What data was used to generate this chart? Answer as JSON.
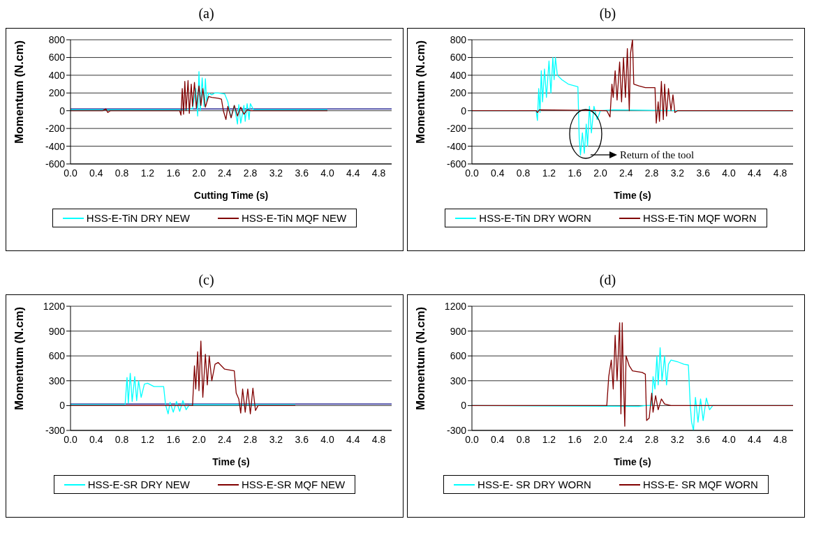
{
  "chart_data": [
    {
      "type": "line",
      "title": "(a)",
      "xlabel": "Cutting Time (s)",
      "ylabel": "Momentum (N.cm)",
      "xlim": [
        0,
        5
      ],
      "xticks": [
        {
          "value": 0,
          "label": "0.0"
        },
        0.4,
        0.8,
        1.2,
        1.6,
        {
          "value": 2,
          "label": "2.0"
        },
        2.4,
        2.8,
        3.2,
        3.6,
        {
          "value": 4,
          "label": "4.0"
        },
        4.4,
        4.8
      ],
      "ylim": [
        -600,
        800
      ],
      "yticks": [
        -600,
        -400,
        -200,
        0,
        200,
        400,
        600,
        800
      ],
      "grid": "y",
      "legend": "bottom",
      "marker": "none",
      "line_style": "solid",
      "series": [
        {
          "color": "#000080",
          "x": [
            0,
            5
          ],
          "values": [
            20,
            20
          ]
        },
        {
          "name": "HSS-E-TiN DRY NEW",
          "color": "#00ffff",
          "x": [
            0,
            1.7,
            1.75,
            1.9,
            1.95,
            1.98,
            2.0,
            2.02,
            2.05,
            2.08,
            2.1,
            2.12,
            2.15,
            2.2,
            2.25,
            2.3,
            2.4,
            2.45,
            2.5,
            2.55,
            2.6,
            2.62,
            2.65,
            2.7,
            2.72,
            2.75,
            2.78,
            2.8,
            2.85,
            3.2,
            4.0
          ],
          "values": [
            10,
            10,
            10,
            20,
            250,
            -60,
            440,
            0,
            370,
            50,
            360,
            100,
            200,
            180,
            200,
            200,
            190,
            100,
            -80,
            60,
            -150,
            70,
            -140,
            60,
            -120,
            80,
            -100,
            80,
            10,
            10,
            10
          ]
        },
        {
          "name": "HSS-E-TiN MQF NEW",
          "color": "#800000",
          "x": [
            0,
            0.5,
            0.55,
            0.58,
            0.62,
            1.7,
            1.72,
            1.74,
            1.76,
            1.78,
            1.8,
            1.83,
            1.85,
            1.88,
            1.9,
            1.93,
            1.96,
            2.0,
            2.03,
            2.06,
            2.1,
            2.15,
            2.2,
            2.3,
            2.35,
            2.38,
            2.42,
            2.45,
            2.5,
            2.55,
            2.6,
            2.65,
            2.7,
            2.75,
            2.8,
            4.0
          ],
          "values": [
            0,
            0,
            20,
            -20,
            0,
            0,
            -50,
            250,
            -40,
            330,
            0,
            340,
            -30,
            300,
            50,
            320,
            30,
            280,
            60,
            250,
            40,
            160,
            150,
            140,
            130,
            0,
            -100,
            50,
            -80,
            60,
            -60,
            40,
            -40,
            10,
            0,
            0
          ]
        }
      ]
    },
    {
      "type": "line",
      "title": "(b)",
      "xlabel": "Time (s)",
      "ylabel": "Momentum (N.cm)",
      "xlim": [
        0,
        5
      ],
      "xticks": [
        {
          "value": 0,
          "label": "0.0"
        },
        0.4,
        0.8,
        1.2,
        1.6,
        {
          "value": 2,
          "label": "2.0"
        },
        2.4,
        2.8,
        3.2,
        3.6,
        {
          "value": 4,
          "label": "4.0"
        },
        4.4,
        4.8
      ],
      "ylim": [
        -600,
        800
      ],
      "yticks": [
        -600,
        -400,
        -200,
        0,
        200,
        400,
        600,
        800
      ],
      "grid": "y",
      "legend": "bottom",
      "marker": "none",
      "line_style": "solid",
      "annotations": [
        "Return of the tool"
      ],
      "series": [
        {
          "name": "HSS-E-TiN DRY WORN",
          "color": "#00ffff",
          "x": [
            0,
            1.0,
            1.02,
            1.04,
            1.06,
            1.08,
            1.1,
            1.13,
            1.16,
            1.2,
            1.23,
            1.26,
            1.28,
            1.3,
            1.33,
            1.4,
            1.5,
            1.6,
            1.65,
            1.67,
            1.69,
            1.72,
            1.75,
            1.78,
            1.8,
            1.83,
            1.86,
            1.9,
            1.95,
            2.0,
            2.2,
            3.2,
            5.0
          ],
          "values": [
            0,
            0,
            -110,
            250,
            -20,
            450,
            100,
            470,
            150,
            560,
            200,
            600,
            350,
            600,
            400,
            350,
            300,
            280,
            270,
            -300,
            -500,
            -250,
            -480,
            -150,
            -400,
            50,
            -250,
            50,
            -100,
            0,
            10,
            0,
            0
          ]
        },
        {
          "name": "HSS-E-TiN MQF WORN",
          "color": "#800000",
          "x": [
            0,
            1.0,
            1.02,
            1.05,
            2.1,
            2.15,
            2.18,
            2.2,
            2.23,
            2.26,
            2.3,
            2.33,
            2.36,
            2.39,
            2.42,
            2.45,
            2.47,
            2.5,
            2.52,
            2.6,
            2.7,
            2.85,
            2.87,
            2.9,
            2.92,
            2.95,
            2.98,
            3.0,
            3.03,
            3.06,
            3.1,
            3.13,
            3.16,
            3.2,
            5.0
          ],
          "values": [
            0,
            0,
            -20,
            10,
            0,
            -70,
            300,
            150,
            450,
            120,
            550,
            100,
            600,
            150,
            700,
            0,
            650,
            800,
            300,
            280,
            260,
            260,
            -140,
            100,
            -120,
            330,
            -100,
            300,
            -60,
            250,
            0,
            180,
            -20,
            0,
            0
          ]
        }
      ]
    },
    {
      "type": "line",
      "title": "(c)",
      "xlabel": "Time (s)",
      "ylabel": "Momentum (N.cm)",
      "xlim": [
        0,
        5
      ],
      "xticks": [
        {
          "value": 0,
          "label": "0.0"
        },
        0.4,
        0.8,
        1.2,
        1.6,
        {
          "value": 2,
          "label": "2.0"
        },
        2.4,
        2.8,
        3.2,
        3.6,
        {
          "value": 4,
          "label": "4.0"
        },
        4.4,
        4.8
      ],
      "ylim": [
        -300,
        1200
      ],
      "yticks": [
        -300,
        0,
        300,
        600,
        900,
        1200
      ],
      "grid": "y",
      "legend": "bottom",
      "marker": "none",
      "line_style": "solid",
      "series": [
        {
          "color": "#000080",
          "x": [
            0,
            5
          ],
          "values": [
            20,
            20
          ]
        },
        {
          "name": "HSS-E-SR DRY NEW",
          "color": "#00ffff",
          "x": [
            0,
            0.85,
            0.88,
            0.9,
            0.93,
            0.96,
            1.0,
            1.03,
            1.06,
            1.1,
            1.15,
            1.2,
            1.3,
            1.45,
            1.48,
            1.52,
            1.55,
            1.6,
            1.65,
            1.7,
            1.75,
            1.8,
            1.85,
            2.6,
            3.5
          ],
          "values": [
            10,
            10,
            340,
            30,
            390,
            50,
            350,
            60,
            300,
            100,
            260,
            270,
            230,
            230,
            10,
            -100,
            40,
            -80,
            50,
            -70,
            60,
            -50,
            10,
            10,
            10
          ]
        },
        {
          "name": "HSS-E-SR MQF NEW",
          "color": "#800000",
          "x": [
            0,
            1.9,
            1.93,
            1.95,
            1.98,
            2.0,
            2.03,
            2.06,
            2.1,
            2.13,
            2.16,
            2.2,
            2.25,
            2.3,
            2.4,
            2.55,
            2.58,
            2.62,
            2.65,
            2.68,
            2.72,
            2.76,
            2.8,
            2.84,
            2.88,
            2.92,
            3.5
          ],
          "values": [
            0,
            0,
            480,
            200,
            650,
            180,
            780,
            100,
            620,
            250,
            600,
            300,
            500,
            520,
            440,
            420,
            150,
            80,
            -90,
            200,
            -80,
            200,
            -100,
            210,
            -60,
            0,
            0
          ]
        }
      ]
    },
    {
      "type": "line",
      "title": "(d)",
      "xlabel": "Time (s)",
      "ylabel": "Momentum (N.cm)",
      "xlim": [
        0,
        5
      ],
      "xticks": [
        {
          "value": 0,
          "label": "0.0"
        },
        0.4,
        0.8,
        1.2,
        1.6,
        {
          "value": 2,
          "label": "2.0"
        },
        2.4,
        2.8,
        3.2,
        3.6,
        {
          "value": 4,
          "label": "4.0"
        },
        4.4,
        4.8
      ],
      "ylim": [
        -300,
        1200
      ],
      "yticks": [
        -300,
        0,
        300,
        600,
        900,
        1200
      ],
      "grid": "y",
      "legend": "bottom",
      "marker": "none",
      "line_style": "solid",
      "series": [
        {
          "name": "HSS-E- SR DRY WORN",
          "color": "#00ffff",
          "x": [
            0,
            2.6,
            2.7,
            2.8,
            2.82,
            2.85,
            2.88,
            2.9,
            2.93,
            2.96,
            3.0,
            3.03,
            3.06,
            3.1,
            3.2,
            3.3,
            3.37,
            3.4,
            3.42,
            3.45,
            3.48,
            3.52,
            3.56,
            3.6,
            3.65,
            3.7,
            3.75,
            5.0
          ],
          "values": [
            0,
            -10,
            0,
            0,
            350,
            200,
            600,
            250,
            700,
            300,
            600,
            250,
            500,
            550,
            530,
            500,
            490,
            0,
            -200,
            -300,
            100,
            -200,
            80,
            -180,
            90,
            -50,
            0,
            0
          ]
        },
        {
          "name": "HSS-E- SR MQF WORN",
          "color": "#800000",
          "x": [
            0,
            2.1,
            2.13,
            2.17,
            2.2,
            2.23,
            2.26,
            2.3,
            2.32,
            2.34,
            2.36,
            2.38,
            2.4,
            2.45,
            2.5,
            2.65,
            2.7,
            2.72,
            2.76,
            2.8,
            2.82,
            2.86,
            2.9,
            2.95,
            3.0,
            3.1,
            5.0
          ],
          "values": [
            0,
            0,
            350,
            550,
            200,
            850,
            300,
            1000,
            -100,
            1000,
            300,
            -250,
            600,
            480,
            420,
            400,
            380,
            -180,
            -150,
            150,
            -80,
            120,
            -50,
            80,
            20,
            0,
            0
          ]
        }
      ]
    }
  ]
}
